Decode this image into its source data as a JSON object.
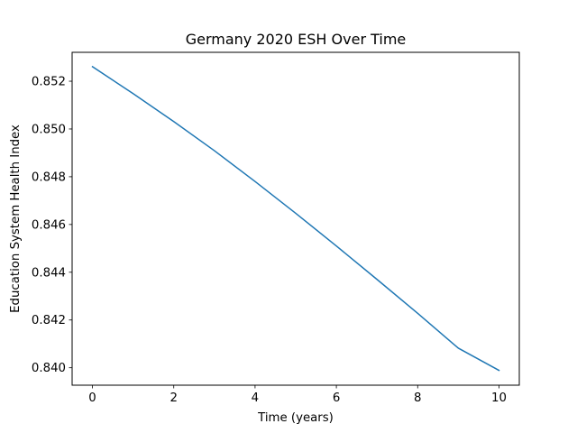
{
  "chart_data": {
    "type": "line",
    "title": "Germany 2020 ESH Over Time",
    "xlabel": "Time (years)",
    "ylabel": "Education System Health Index",
    "xlim": [
      -0.5,
      10.5
    ],
    "ylim": [
      0.83927,
      0.85321
    ],
    "grid": false,
    "x_ticks": [
      0,
      2,
      4,
      6,
      8,
      10
    ],
    "x_tick_labels": [
      "0",
      "2",
      "4",
      "6",
      "8",
      "10"
    ],
    "y_ticks": [
      0.84,
      0.842,
      0.844,
      0.846,
      0.848,
      0.85,
      0.852
    ],
    "y_tick_labels": [
      "0.840",
      "0.842",
      "0.844",
      "0.846",
      "0.848",
      "0.850",
      "0.852"
    ],
    "series": [
      {
        "color": "#1f77b4",
        "x": [
          0,
          1,
          2,
          3,
          4,
          5,
          6,
          7,
          8,
          9,
          10
        ],
        "y": [
          0.85261,
          0.85148,
          0.85031,
          0.84909,
          0.8478,
          0.84647,
          0.8451,
          0.8437,
          0.84228,
          0.84082,
          0.83989
        ]
      }
    ]
  }
}
